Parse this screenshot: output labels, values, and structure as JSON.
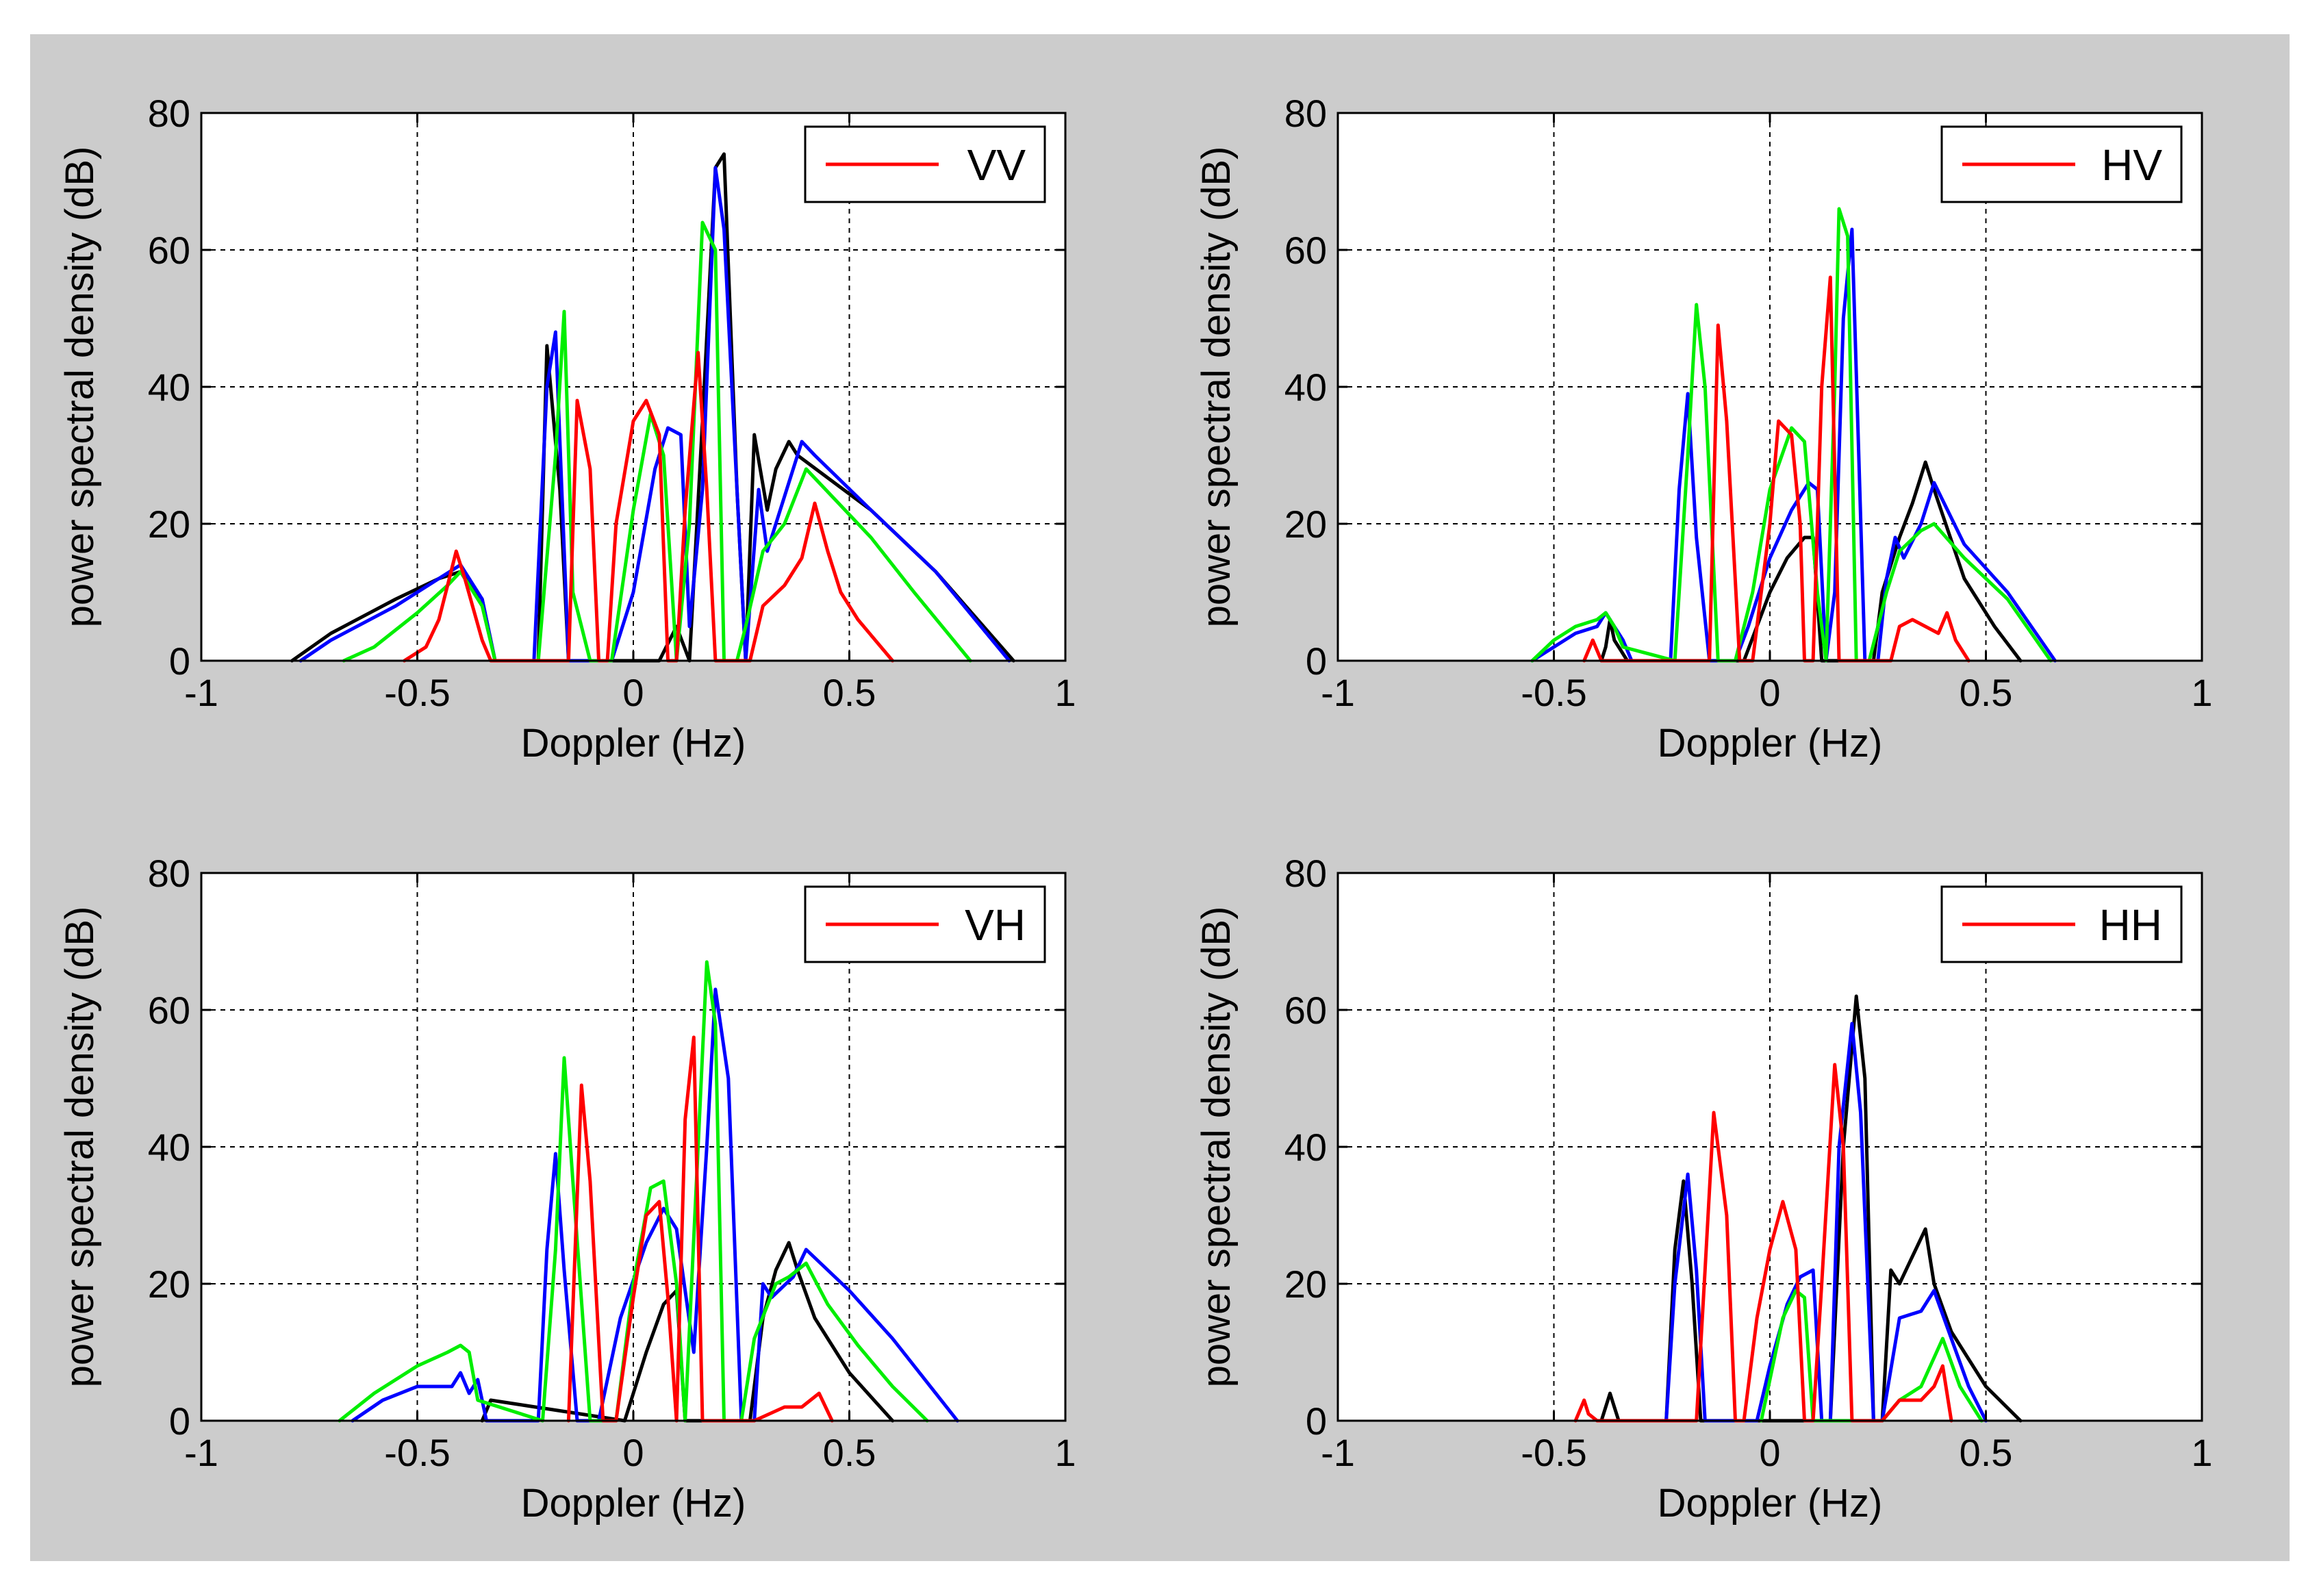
{
  "figure": {
    "background": "#cccccc"
  },
  "colors": {
    "red": "#ff0000",
    "green": "#00ee00",
    "blue": "#0000ff",
    "black": "#000000"
  },
  "chart_data": [
    {
      "type": "line",
      "legend": "VV",
      "xlabel": "Doppler (Hz)",
      "ylabel": "power spectral density (dB)",
      "xlim": [
        -1,
        1
      ],
      "ylim": [
        0,
        80
      ],
      "xticks": [
        "-1",
        "-0.5",
        "0",
        "0.5",
        "1"
      ],
      "yticks": [
        "0",
        "20",
        "40",
        "60",
        "80"
      ],
      "grid": true,
      "legend_position": "top-right",
      "series": [
        {
          "name": "black",
          "color": "#000000",
          "x": [
            -0.79,
            -0.7,
            -0.55,
            -0.45,
            -0.4,
            -0.35,
            -0.32,
            -0.22,
            -0.2,
            -0.17,
            -0.15,
            -0.06,
            0.06,
            0.1,
            0.13,
            0.16,
            0.19,
            0.21,
            0.24,
            0.26,
            0.28,
            0.31,
            0.33,
            0.36,
            0.38,
            0.55,
            0.7,
            0.88
          ],
          "y": [
            0,
            4,
            9,
            12,
            13,
            9,
            0,
            0,
            46,
            25,
            0,
            0,
            0,
            5,
            0,
            35,
            72,
            74,
            25,
            0,
            33,
            22,
            28,
            32,
            30,
            22,
            13,
            0
          ]
        },
        {
          "name": "blue",
          "color": "#0000ff",
          "x": [
            -0.77,
            -0.7,
            -0.55,
            -0.45,
            -0.4,
            -0.35,
            -0.32,
            -0.23,
            -0.2,
            -0.18,
            -0.15,
            -0.1,
            -0.05,
            0,
            0.05,
            0.08,
            0.11,
            0.13,
            0.16,
            0.19,
            0.21,
            0.24,
            0.26,
            0.29,
            0.31,
            0.34,
            0.39,
            0.42,
            0.55,
            0.7,
            0.87
          ],
          "y": [
            0,
            3,
            8,
            12,
            14,
            9,
            0,
            0,
            40,
            48,
            0,
            0,
            0,
            10,
            28,
            34,
            33,
            5,
            25,
            72,
            63,
            25,
            0,
            25,
            16,
            22,
            32,
            30,
            22,
            13,
            0
          ]
        },
        {
          "name": "green",
          "color": "#00ee00",
          "x": [
            -0.67,
            -0.6,
            -0.5,
            -0.43,
            -0.4,
            -0.35,
            -0.32,
            -0.22,
            -0.18,
            -0.16,
            -0.14,
            -0.1,
            -0.05,
            0,
            0.04,
            0.07,
            0.1,
            0.13,
            0.16,
            0.19,
            0.21,
            0.24,
            0.26,
            0.3,
            0.35,
            0.4,
            0.55,
            0.65,
            0.78
          ],
          "y": [
            0,
            2,
            7,
            11,
            13,
            8,
            0,
            0,
            30,
            51,
            10,
            0,
            0,
            22,
            36,
            30,
            0,
            20,
            64,
            60,
            0,
            0,
            5,
            16,
            20,
            28,
            18,
            10,
            0
          ]
        },
        {
          "name": "red",
          "color": "#ff0000",
          "x": [
            -0.53,
            -0.48,
            -0.45,
            -0.43,
            -0.41,
            -0.39,
            -0.35,
            -0.33,
            -0.15,
            -0.13,
            -0.1,
            -0.08,
            -0.06,
            -0.04,
            0,
            0.03,
            0.06,
            0.08,
            0.1,
            0.12,
            0.15,
            0.17,
            0.19,
            0.27,
            0.3,
            0.35,
            0.39,
            0.42,
            0.45,
            0.48,
            0.52,
            0.6
          ],
          "y": [
            0,
            2,
            6,
            11,
            16,
            12,
            3,
            0,
            0,
            38,
            28,
            0,
            0,
            20,
            35,
            38,
            33,
            0,
            0,
            22,
            45,
            25,
            0,
            0,
            8,
            11,
            15,
            23,
            16,
            10,
            6,
            0
          ]
        }
      ]
    },
    {
      "type": "line",
      "legend": "HV",
      "xlabel": "Doppler (Hz)",
      "ylabel": "power spectral density (dB)",
      "xlim": [
        -1,
        1
      ],
      "ylim": [
        0,
        80
      ],
      "xticks": [
        "-1",
        "-0.5",
        "0",
        "0.5",
        "1"
      ],
      "yticks": [
        "0",
        "20",
        "40",
        "60",
        "80"
      ],
      "grid": true,
      "legend_position": "top-right",
      "series": [
        {
          "name": "black",
          "color": "#000000",
          "x": [
            -0.39,
            -0.38,
            -0.37,
            -0.36,
            -0.35,
            -0.33,
            -0.06,
            0,
            0.04,
            0.08,
            0.1,
            0.12,
            0.15,
            0.17,
            0.2,
            0.24,
            0.26,
            0.3,
            0.33,
            0.36,
            0.38,
            0.45,
            0.52,
            0.58
          ],
          "y": [
            0,
            2,
            6,
            3,
            2,
            0,
            0,
            10,
            15,
            18,
            18,
            0,
            0,
            0,
            0,
            0,
            10,
            18,
            23,
            29,
            25,
            12,
            5,
            0
          ]
        },
        {
          "name": "blue",
          "color": "#0000ff",
          "x": [
            -0.55,
            -0.5,
            -0.45,
            -0.4,
            -0.38,
            -0.36,
            -0.34,
            -0.32,
            -0.23,
            -0.21,
            -0.19,
            -0.17,
            -0.14,
            -0.08,
            -0.05,
            0,
            0.05,
            0.09,
            0.11,
            0.13,
            0.15,
            0.17,
            0.19,
            0.22,
            0.25,
            0.27,
            0.29,
            0.31,
            0.35,
            0.38,
            0.45,
            0.55,
            0.66
          ],
          "y": [
            0,
            2,
            4,
            5,
            7,
            5,
            3,
            0,
            0,
            25,
            39,
            18,
            0,
            0,
            5,
            15,
            22,
            26,
            25,
            0,
            10,
            50,
            63,
            0,
            0,
            12,
            18,
            15,
            20,
            26,
            17,
            10,
            0
          ]
        },
        {
          "name": "green",
          "color": "#00ee00",
          "x": [
            -0.55,
            -0.5,
            -0.45,
            -0.4,
            -0.38,
            -0.36,
            -0.34,
            -0.22,
            -0.19,
            -0.17,
            -0.15,
            -0.12,
            -0.08,
            -0.04,
            0,
            0.05,
            0.08,
            0.11,
            0.13,
            0.15,
            0.16,
            0.18,
            0.2,
            0.23,
            0.27,
            0.3,
            0.35,
            0.38,
            0.45,
            0.55,
            0.65
          ],
          "y": [
            0,
            3,
            5,
            6,
            7,
            5,
            2,
            0,
            30,
            52,
            40,
            0,
            0,
            10,
            25,
            34,
            32,
            10,
            0,
            40,
            66,
            62,
            0,
            0,
            10,
            16,
            19,
            20,
            15,
            9,
            0
          ]
        },
        {
          "name": "red",
          "color": "#ff0000",
          "x": [
            -0.43,
            -0.41,
            -0.39,
            -0.14,
            -0.12,
            -0.1,
            -0.07,
            -0.04,
            0,
            0.02,
            0.05,
            0.07,
            0.08,
            0.1,
            0.12,
            0.14,
            0.16,
            0.28,
            0.3,
            0.33,
            0.36,
            0.39,
            0.41,
            0.43,
            0.46
          ],
          "y": [
            0,
            3,
            0,
            0,
            49,
            35,
            0,
            0,
            20,
            35,
            33,
            20,
            0,
            0,
            40,
            56,
            0,
            0,
            5,
            6,
            5,
            4,
            7,
            3,
            0
          ]
        }
      ]
    },
    {
      "type": "line",
      "legend": "VH",
      "xlabel": "Doppler (Hz)",
      "ylabel": "power spectral density (dB)",
      "xlim": [
        -1,
        1
      ],
      "ylim": [
        0,
        80
      ],
      "xticks": [
        "-1",
        "-0.5",
        "0",
        "0.5",
        "1"
      ],
      "yticks": [
        "0",
        "20",
        "40",
        "60",
        "80"
      ],
      "grid": true,
      "legend_position": "top-right",
      "series": [
        {
          "name": "black",
          "color": "#000000",
          "x": [
            -0.35,
            -0.33,
            -0.02,
            0.03,
            0.07,
            0.1,
            0.12,
            0.27,
            0.3,
            0.33,
            0.36,
            0.38,
            0.42,
            0.5,
            0.6
          ],
          "y": [
            0,
            3,
            0,
            10,
            17,
            19,
            0,
            0,
            15,
            22,
            26,
            22,
            15,
            7,
            0
          ]
        },
        {
          "name": "blue",
          "color": "#0000ff",
          "x": [
            -0.65,
            -0.58,
            -0.5,
            -0.42,
            -0.4,
            -0.38,
            -0.36,
            -0.34,
            -0.22,
            -0.2,
            -0.18,
            -0.16,
            -0.13,
            -0.08,
            -0.03,
            0.03,
            0.07,
            0.1,
            0.14,
            0.17,
            0.19,
            0.22,
            0.25,
            0.28,
            0.3,
            0.32,
            0.37,
            0.4,
            0.5,
            0.6,
            0.75
          ],
          "y": [
            0,
            3,
            5,
            5,
            7,
            4,
            6,
            0,
            0,
            25,
            39,
            22,
            0,
            0,
            15,
            26,
            31,
            28,
            10,
            40,
            63,
            50,
            0,
            0,
            20,
            18,
            21,
            25,
            19,
            12,
            0
          ]
        },
        {
          "name": "green",
          "color": "#00ee00",
          "x": [
            -0.68,
            -0.6,
            -0.5,
            -0.43,
            -0.4,
            -0.38,
            -0.36,
            -0.21,
            -0.18,
            -0.16,
            -0.14,
            -0.1,
            -0.04,
            0,
            0.04,
            0.07,
            0.1,
            0.12,
            0.15,
            0.17,
            0.19,
            0.21,
            0.25,
            0.28,
            0.33,
            0.36,
            0.4,
            0.45,
            0.52,
            0.6,
            0.68
          ],
          "y": [
            0,
            4,
            8,
            10,
            11,
            10,
            3,
            0,
            25,
            53,
            35,
            0,
            0,
            20,
            34,
            35,
            20,
            0,
            40,
            67,
            58,
            0,
            0,
            12,
            20,
            21,
            23,
            17,
            11,
            5,
            0
          ]
        },
        {
          "name": "red",
          "color": "#ff0000",
          "x": [
            -0.15,
            -0.12,
            -0.1,
            -0.07,
            -0.04,
            0,
            0.03,
            0.06,
            0.08,
            0.1,
            0.12,
            0.14,
            0.16,
            0.28,
            0.35,
            0.39,
            0.41,
            0.43,
            0.46
          ],
          "y": [
            0,
            49,
            35,
            0,
            0,
            18,
            30,
            32,
            18,
            0,
            44,
            56,
            0,
            0,
            2,
            2,
            3,
            4,
            0
          ]
        }
      ]
    },
    {
      "type": "line",
      "legend": "HH",
      "xlabel": "Doppler (Hz)",
      "ylabel": "power spectral density (dB)",
      "xlim": [
        -1,
        1
      ],
      "ylim": [
        0,
        80
      ],
      "xticks": [
        "-1",
        "-0.5",
        "0",
        "0.5",
        "1"
      ],
      "yticks": [
        "0",
        "20",
        "40",
        "60",
        "80"
      ],
      "grid": true,
      "legend_position": "top-right",
      "series": [
        {
          "name": "black",
          "color": "#000000",
          "x": [
            -0.39,
            -0.38,
            -0.37,
            -0.36,
            -0.35,
            -0.24,
            -0.22,
            -0.2,
            -0.18,
            -0.16,
            -0.14,
            -0.12,
            0.14,
            0.17,
            0.2,
            0.22,
            0.24,
            0.26,
            0.28,
            0.3,
            0.33,
            0.36,
            0.38,
            0.42,
            0.5,
            0.58
          ],
          "y": [
            0,
            2,
            4,
            2,
            0,
            0,
            25,
            35,
            20,
            0,
            0,
            0,
            0,
            40,
            62,
            50,
            0,
            0,
            22,
            20,
            24,
            28,
            20,
            13,
            5,
            0
          ]
        },
        {
          "name": "blue",
          "color": "#0000ff",
          "x": [
            -0.24,
            -0.22,
            -0.19,
            -0.17,
            -0.15,
            -0.03,
            0,
            0.04,
            0.07,
            0.1,
            0.12,
            0.14,
            0.16,
            0.19,
            0.21,
            0.24,
            0.26,
            0.3,
            0.35,
            0.38,
            0.42,
            0.46,
            0.5
          ],
          "y": [
            0,
            20,
            36,
            22,
            0,
            0,
            8,
            17,
            21,
            22,
            0,
            0,
            40,
            58,
            45,
            0,
            0,
            15,
            16,
            19,
            12,
            5,
            0
          ]
        },
        {
          "name": "green",
          "color": "#00ee00",
          "x": [
            -0.02,
            0,
            0.03,
            0.06,
            0.08,
            0.1,
            0.26,
            0.3,
            0.35,
            0.4,
            0.44,
            0.49
          ],
          "y": [
            0,
            6,
            15,
            19,
            18,
            0,
            0,
            3,
            5,
            12,
            5,
            0
          ]
        },
        {
          "name": "red",
          "color": "#ff0000",
          "x": [
            -0.45,
            -0.43,
            -0.42,
            -0.4,
            -0.17,
            -0.15,
            -0.13,
            -0.1,
            -0.08,
            -0.06,
            -0.03,
            0,
            0.03,
            0.06,
            0.08,
            0.1,
            0.12,
            0.15,
            0.17,
            0.19,
            0.26,
            0.3,
            0.35,
            0.38,
            0.4,
            0.42
          ],
          "y": [
            0,
            3,
            1,
            0,
            0,
            22,
            45,
            30,
            0,
            0,
            15,
            25,
            32,
            25,
            0,
            0,
            20,
            52,
            40,
            0,
            0,
            3,
            3,
            5,
            8,
            0
          ]
        }
      ]
    }
  ]
}
